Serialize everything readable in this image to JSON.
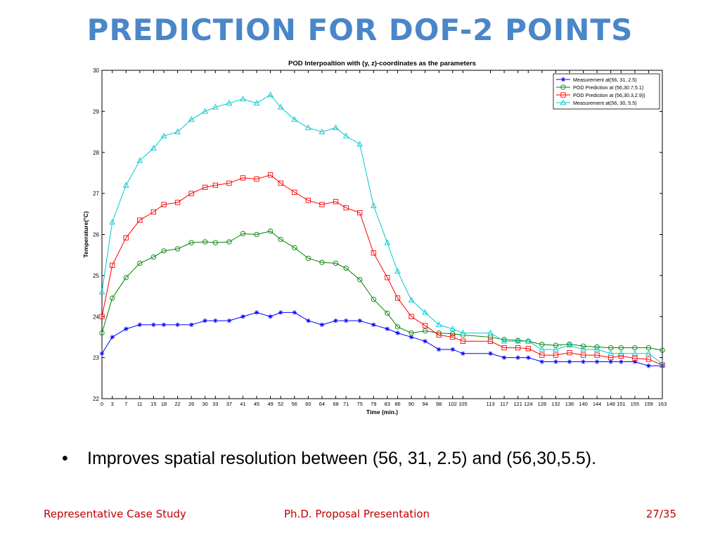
{
  "slide": {
    "title": "PREDICTION FOR DOF-2 POINTS",
    "bullet": "Improves spatial resolution between (56, 31, 2.5) and (56,30,5.5).",
    "footer_left": "Representative Case Study",
    "footer_center": "Ph.D. Proposal Presentation",
    "footer_right": "27/35"
  },
  "chart_data": {
    "type": "line",
    "title": "POD Interpoaltion with (y, z)-coordinates as the parameters",
    "xlabel": "Time (min.)",
    "ylabel": "Temperature(°C)",
    "x": [
      0,
      3,
      7,
      11,
      15,
      18,
      22,
      26,
      30,
      33,
      37,
      41,
      45,
      49,
      52,
      56,
      60,
      64,
      68,
      71,
      75,
      79,
      83,
      86,
      90,
      94,
      98,
      102,
      105,
      113,
      117,
      121,
      124,
      128,
      132,
      136,
      140,
      144,
      148,
      151,
      155,
      159,
      163
    ],
    "x_tick_labels": [
      "0",
      "3",
      "7",
      "11",
      "15",
      "18",
      "22",
      "26",
      "30",
      "33",
      "37",
      "41",
      "45",
      "49",
      "52",
      "56",
      "60",
      "64",
      "68",
      "71",
      "75",
      "79",
      "83",
      "86",
      "90",
      "94",
      "98",
      "102",
      "105",
      "113",
      "117",
      "121",
      "124",
      "128",
      "132",
      "136",
      "140",
      "144",
      "148",
      "151",
      "155",
      "159",
      "163"
    ],
    "xlim": [
      0,
      163
    ],
    "ylim": [
      22,
      30
    ],
    "y_ticks": [
      22,
      23,
      24,
      25,
      26,
      27,
      28,
      29,
      30
    ],
    "grid": false,
    "legend_position": "top-right",
    "series": [
      {
        "name": "Measurement at(56, 31, 2.5)",
        "color": "#0000ff",
        "marker": "star",
        "values": [
          23.1,
          23.5,
          23.7,
          23.8,
          23.8,
          23.8,
          23.8,
          23.8,
          23.9,
          23.9,
          23.9,
          24.0,
          24.1,
          24.0,
          24.1,
          24.1,
          23.9,
          23.8,
          23.9,
          23.9,
          23.9,
          23.8,
          23.7,
          23.6,
          23.5,
          23.4,
          23.2,
          23.2,
          23.1,
          23.1,
          23.0,
          23.0,
          23.0,
          22.9,
          22.9,
          22.9,
          22.9,
          22.9,
          22.9,
          22.9,
          22.9,
          22.8,
          22.8
        ]
      },
      {
        "name": "POD Prediction at (56,30.7,5.1)",
        "color": "#008000",
        "marker": "circle",
        "values": [
          23.6,
          24.45,
          24.95,
          25.3,
          25.45,
          25.6,
          25.65,
          25.8,
          25.82,
          25.8,
          25.82,
          26.02,
          26.0,
          26.08,
          25.88,
          25.68,
          25.42,
          25.32,
          25.3,
          25.18,
          24.9,
          24.42,
          24.08,
          23.75,
          23.6,
          23.65,
          23.6,
          23.58,
          23.55,
          23.5,
          23.44,
          23.42,
          23.4,
          23.32,
          23.3,
          23.33,
          23.28,
          23.26,
          23.24,
          23.24,
          23.24,
          23.24,
          23.18
        ]
      },
      {
        "name": "POD Prediction at (56,30.3,2.9))",
        "color": "#ff0000",
        "marker": "square",
        "values": [
          24.0,
          25.25,
          25.92,
          26.35,
          26.55,
          26.73,
          26.78,
          27.0,
          27.15,
          27.2,
          27.25,
          27.38,
          27.35,
          27.45,
          27.25,
          27.03,
          26.83,
          26.73,
          26.8,
          26.65,
          26.53,
          25.55,
          24.95,
          24.45,
          24.0,
          23.78,
          23.55,
          23.5,
          23.4,
          23.4,
          23.24,
          23.24,
          23.22,
          23.06,
          23.06,
          23.12,
          23.06,
          23.06,
          23.0,
          23.04,
          22.98,
          22.96,
          22.82
        ]
      },
      {
        "name": "Measurement at(56, 30, 5.5)",
        "color": "#00c8d2",
        "marker": "triangle",
        "values": [
          24.6,
          26.3,
          27.2,
          27.8,
          28.1,
          28.4,
          28.5,
          28.8,
          29.0,
          29.1,
          29.2,
          29.3,
          29.2,
          29.4,
          29.1,
          28.8,
          28.6,
          28.5,
          28.6,
          28.4,
          28.2,
          26.7,
          25.8,
          25.1,
          24.4,
          24.1,
          23.8,
          23.7,
          23.6,
          23.6,
          23.4,
          23.4,
          23.4,
          23.2,
          23.2,
          23.3,
          23.2,
          23.2,
          23.1,
          23.1,
          23.1,
          23.1,
          22.85
        ]
      }
    ]
  }
}
